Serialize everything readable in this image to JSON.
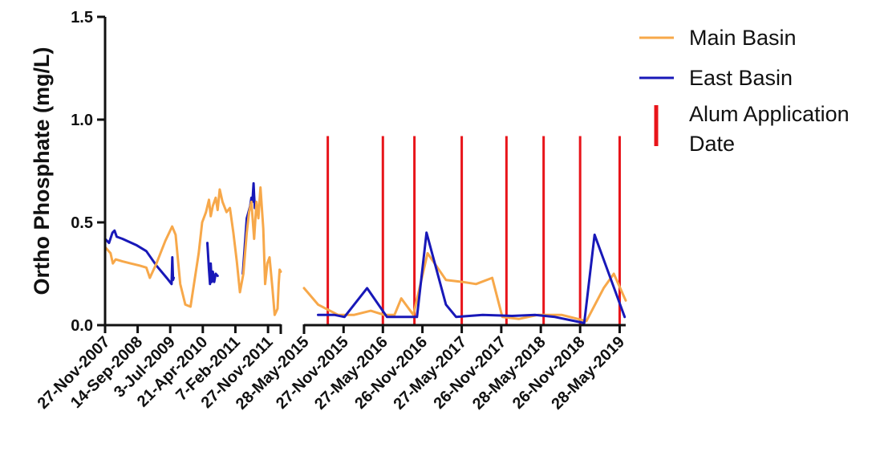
{
  "chart_data": {
    "type": "line",
    "title": "",
    "ylabel": "Ortho Phosphate (mg/L)",
    "xlabel": "",
    "ylim": [
      0,
      1.5
    ],
    "yticks": [
      "0.0",
      "0.5",
      "1.0",
      "1.5"
    ],
    "x_axis": "date",
    "axis_break": "between 27-Nov-2011 and 28-May-2015",
    "segments": [
      {
        "xlim": [
          "2007-11-27",
          "2012-03-20"
        ]
      },
      {
        "xlim": [
          "2015-05-28",
          "2019-06-25"
        ]
      }
    ],
    "xticks_left": [
      {
        "date": "2007-11-27",
        "label": "27-Nov-2007"
      },
      {
        "date": "2008-09-14",
        "label": "14-Sep-2008"
      },
      {
        "date": "2009-07-03",
        "label": "3-Jul-2009"
      },
      {
        "date": "2010-04-21",
        "label": "21-Apr-2010"
      },
      {
        "date": "2011-02-07",
        "label": "7-Feb-2011"
      },
      {
        "date": "2011-11-27",
        "label": "27-Nov-2011"
      }
    ],
    "xticks_right": [
      {
        "date": "2015-05-28",
        "label": "28-May-2015"
      },
      {
        "date": "2015-11-27",
        "label": "27-Nov-2015"
      },
      {
        "date": "2016-05-27",
        "label": "27-May-2016"
      },
      {
        "date": "2016-11-26",
        "label": "26-Nov-2016"
      },
      {
        "date": "2017-05-27",
        "label": "27-May-2017"
      },
      {
        "date": "2017-11-26",
        "label": "26-Nov-2017"
      },
      {
        "date": "2018-05-28",
        "label": "28-May-2018"
      },
      {
        "date": "2018-11-26",
        "label": "26-Nov-2018"
      },
      {
        "date": "2019-05-28",
        "label": "28-May-2019"
      }
    ],
    "series": [
      {
        "name": "Main Basin",
        "color": "#f7a84a",
        "points": [
          {
            "x": "2007-11-27",
            "y": 0.38
          },
          {
            "x": "2008-01-15",
            "y": 0.35
          },
          {
            "x": "2008-02-05",
            "y": 0.3
          },
          {
            "x": "2008-03-01",
            "y": 0.32
          },
          {
            "x": "2008-05-01",
            "y": 0.31
          },
          {
            "x": "2008-07-15",
            "y": 0.3
          },
          {
            "x": "2008-10-01",
            "y": 0.29
          },
          {
            "x": "2008-12-01",
            "y": 0.28
          },
          {
            "x": "2009-01-01",
            "y": 0.23
          },
          {
            "x": "2009-03-01",
            "y": 0.3
          },
          {
            "x": "2009-05-20",
            "y": 0.41
          },
          {
            "x": "2009-07-20",
            "y": 0.48
          },
          {
            "x": "2009-08-20",
            "y": 0.44
          },
          {
            "x": "2009-10-01",
            "y": 0.2
          },
          {
            "x": "2009-11-15",
            "y": 0.1
          },
          {
            "x": "2010-01-01",
            "y": 0.09
          },
          {
            "x": "2010-03-15",
            "y": 0.35
          },
          {
            "x": "2010-04-15",
            "y": 0.5
          },
          {
            "x": "2010-05-20",
            "y": 0.55
          },
          {
            "x": "2010-06-15",
            "y": 0.61
          },
          {
            "x": "2010-07-01",
            "y": 0.53
          },
          {
            "x": "2010-07-20",
            "y": 0.58
          },
          {
            "x": "2010-08-15",
            "y": 0.62
          },
          {
            "x": "2010-09-01",
            "y": 0.56
          },
          {
            "x": "2010-09-20",
            "y": 0.66
          },
          {
            "x": "2010-10-15",
            "y": 0.6
          },
          {
            "x": "2010-11-20",
            "y": 0.55
          },
          {
            "x": "2010-12-20",
            "y": 0.57
          },
          {
            "x": "2011-01-20",
            "y": 0.45
          },
          {
            "x": "2011-02-20",
            "y": 0.31
          },
          {
            "x": "2011-03-20",
            "y": 0.16
          },
          {
            "x": "2011-04-20",
            "y": 0.25
          },
          {
            "x": "2011-05-20",
            "y": 0.45
          },
          {
            "x": "2011-06-10",
            "y": 0.55
          },
          {
            "x": "2011-07-01",
            "y": 0.6
          },
          {
            "x": "2011-07-25",
            "y": 0.42
          },
          {
            "x": "2011-08-15",
            "y": 0.6
          },
          {
            "x": "2011-09-01",
            "y": 0.52
          },
          {
            "x": "2011-09-20",
            "y": 0.67
          },
          {
            "x": "2011-10-15",
            "y": 0.47
          },
          {
            "x": "2011-11-01",
            "y": 0.2
          },
          {
            "x": "2011-11-20",
            "y": 0.3
          },
          {
            "x": "2011-12-10",
            "y": 0.33
          },
          {
            "x": "2012-01-05",
            "y": 0.18
          },
          {
            "x": "2012-01-25",
            "y": 0.05
          },
          {
            "x": "2012-02-20",
            "y": 0.08
          },
          {
            "x": "2012-03-01",
            "y": 0.2
          },
          {
            "x": "2012-03-10",
            "y": 0.27
          },
          {
            "x": "2012-03-20",
            "y": 0.26
          }
        ],
        "points2": [
          {
            "x": "2015-05-28",
            "y": 0.18
          },
          {
            "x": "2015-08-01",
            "y": 0.1
          },
          {
            "x": "2015-11-01",
            "y": 0.05
          },
          {
            "x": "2016-01-15",
            "y": 0.05
          },
          {
            "x": "2016-04-01",
            "y": 0.07
          },
          {
            "x": "2016-06-01",
            "y": 0.05
          },
          {
            "x": "2016-07-20",
            "y": 0.05
          },
          {
            "x": "2016-08-20",
            "y": 0.13
          },
          {
            "x": "2016-10-15",
            "y": 0.05
          },
          {
            "x": "2016-12-20",
            "y": 0.35
          },
          {
            "x": "2017-03-15",
            "y": 0.22
          },
          {
            "x": "2017-06-01",
            "y": 0.21
          },
          {
            "x": "2017-08-01",
            "y": 0.2
          },
          {
            "x": "2017-10-15",
            "y": 0.23
          },
          {
            "x": "2017-12-01",
            "y": 0.04
          },
          {
            "x": "2018-02-15",
            "y": 0.03
          },
          {
            "x": "2018-05-15",
            "y": 0.05
          },
          {
            "x": "2018-09-01",
            "y": 0.05
          },
          {
            "x": "2018-12-25",
            "y": 0.02
          },
          {
            "x": "2019-03-15",
            "y": 0.18
          },
          {
            "x": "2019-05-01",
            "y": 0.25
          },
          {
            "x": "2019-06-25",
            "y": 0.12
          }
        ]
      },
      {
        "name": "East Basin",
        "color": "#1818b8",
        "points": [
          {
            "x": "2007-11-27",
            "y": 0.42
          },
          {
            "x": "2008-01-01",
            "y": 0.4
          },
          {
            "x": "2008-02-01",
            "y": 0.45
          },
          {
            "x": "2008-02-20",
            "y": 0.46
          },
          {
            "x": "2008-03-10",
            "y": 0.43
          },
          {
            "x": "2008-05-01",
            "y": 0.42
          },
          {
            "x": "2008-09-01",
            "y": 0.39
          },
          {
            "x": "2008-12-01",
            "y": 0.36
          },
          {
            "x": "2009-03-01",
            "y": 0.29
          },
          {
            "x": "2009-06-01",
            "y": 0.23
          },
          {
            "x": "2009-07-15",
            "y": 0.2
          },
          {
            "x": "2009-07-22",
            "y": 0.33
          },
          {
            "x": "2009-07-28",
            "y": 0.22
          },
          {
            "x": "2009-08-03",
            "y": 0.23
          }
        ],
        "points_b": [
          {
            "x": "2010-06-01",
            "y": 0.4
          },
          {
            "x": "2010-06-15",
            "y": 0.27
          },
          {
            "x": "2010-06-25",
            "y": 0.2
          },
          {
            "x": "2010-07-01",
            "y": 0.3
          },
          {
            "x": "2010-07-10",
            "y": 0.21
          },
          {
            "x": "2010-07-20",
            "y": 0.26
          },
          {
            "x": "2010-08-01",
            "y": 0.21
          },
          {
            "x": "2010-08-15",
            "y": 0.25
          },
          {
            "x": "2010-09-01",
            "y": 0.24
          }
        ],
        "points_c": [
          {
            "x": "2011-04-15",
            "y": 0.25
          },
          {
            "x": "2011-05-20",
            "y": 0.52
          },
          {
            "x": "2011-06-20",
            "y": 0.58
          },
          {
            "x": "2011-07-01",
            "y": 0.62
          },
          {
            "x": "2011-07-10",
            "y": 0.6
          },
          {
            "x": "2011-07-20",
            "y": 0.69
          },
          {
            "x": "2011-07-25",
            "y": 0.63
          },
          {
            "x": "2011-08-01",
            "y": 0.57
          }
        ],
        "points2": [
          {
            "x": "2015-08-01",
            "y": 0.05
          },
          {
            "x": "2015-10-15",
            "y": 0.05
          },
          {
            "x": "2015-12-01",
            "y": 0.04
          },
          {
            "x": "2016-03-15",
            "y": 0.18
          },
          {
            "x": "2016-06-15",
            "y": 0.04
          },
          {
            "x": "2016-11-01",
            "y": 0.04
          },
          {
            "x": "2016-12-15",
            "y": 0.45
          },
          {
            "x": "2017-03-15",
            "y": 0.1
          },
          {
            "x": "2017-05-01",
            "y": 0.04
          },
          {
            "x": "2017-09-01",
            "y": 0.05
          },
          {
            "x": "2018-01-15",
            "y": 0.045
          },
          {
            "x": "2018-05-01",
            "y": 0.05
          },
          {
            "x": "2018-08-01",
            "y": 0.04
          },
          {
            "x": "2018-12-15",
            "y": 0.01
          },
          {
            "x": "2019-02-01",
            "y": 0.44
          },
          {
            "x": "2019-06-20",
            "y": 0.04
          }
        ]
      }
    ],
    "alum_application_dates": [
      "2015-09-15",
      "2016-05-27",
      "2016-10-20",
      "2017-05-27",
      "2017-12-20",
      "2018-06-10",
      "2018-11-26",
      "2019-05-28"
    ],
    "alum_line_top": 0.92,
    "legend": {
      "position": "top-right",
      "items": [
        {
          "label": "Main Basin",
          "color": "#f7a84a",
          "marker": "line"
        },
        {
          "label": "East Basin",
          "color": "#1818b8",
          "marker": "line"
        },
        {
          "label_lines": [
            "Alum Application",
            "Date"
          ],
          "color": "#e8141a",
          "marker": "vertical-bar"
        }
      ]
    }
  }
}
